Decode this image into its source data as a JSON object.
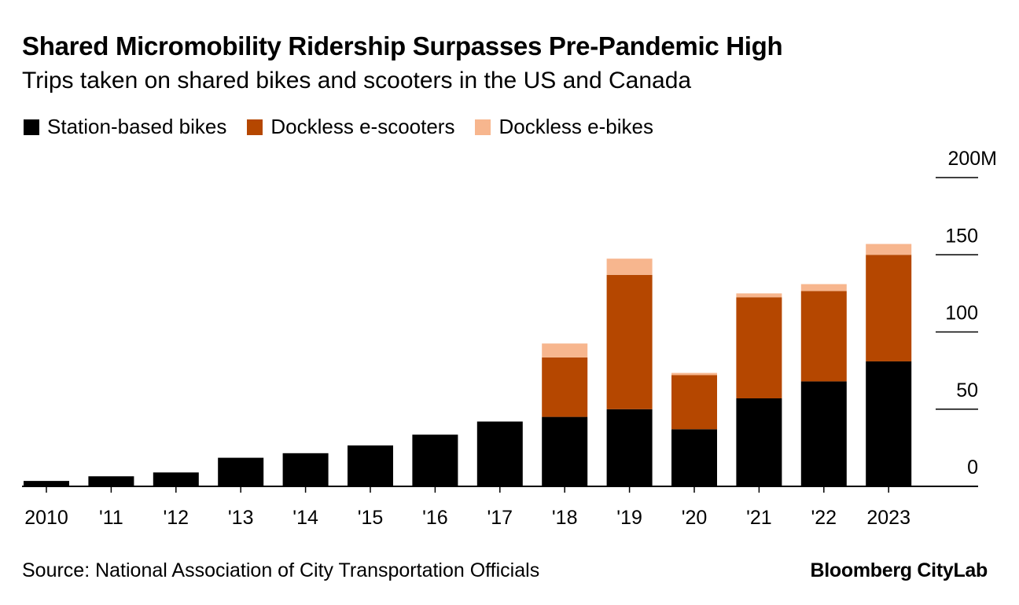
{
  "chart_data": {
    "type": "bar",
    "stacked": true,
    "title": "Shared Micromobility Ridership Surpasses Pre-Pandemic High",
    "subtitle": "Trips taken on shared bikes and scooters in the US and Canada",
    "categories": [
      "2010",
      "'11",
      "'12",
      "'13",
      "'14",
      "'15",
      "'16",
      "'17",
      "'18",
      "'19",
      "'20",
      "'21",
      "'22",
      "2023"
    ],
    "series": [
      {
        "name": "Station-based bikes",
        "color": "#000000",
        "values": [
          3.5,
          6.5,
          9,
          18.5,
          21.5,
          26.5,
          33.5,
          42,
          45,
          50,
          37,
          57,
          68,
          81
        ]
      },
      {
        "name": "Dockless e-scooters",
        "color": "#b54700",
        "values": [
          0,
          0,
          0,
          0,
          0,
          0,
          0,
          0,
          38.5,
          87,
          35,
          65.5,
          58.5,
          69
        ]
      },
      {
        "name": "Dockless e-bikes",
        "color": "#f7b68e",
        "values": [
          0,
          0,
          0,
          0,
          0,
          0,
          0,
          0,
          9,
          10.5,
          1.5,
          2.5,
          4.5,
          7
        ]
      }
    ],
    "ylim": [
      0,
      200
    ],
    "yticks": [
      0,
      50,
      100,
      150,
      200
    ],
    "ytick_labels": [
      "0",
      "50",
      "100",
      "150",
      "200M"
    ],
    "y_axis_position": "right",
    "legend_position": "top-left",
    "grid": false
  },
  "source": "Source: National Association of City Transportation Officials",
  "brand": "Bloomberg CityLab"
}
